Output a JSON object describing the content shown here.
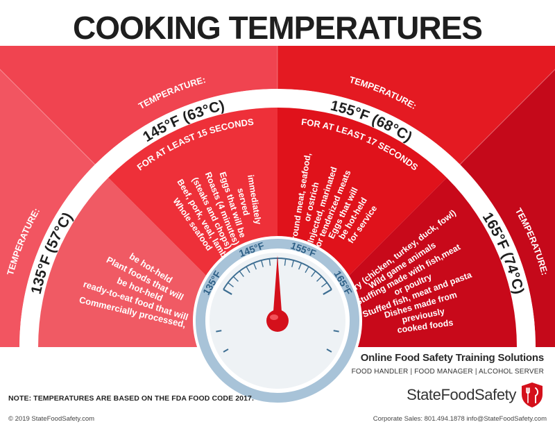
{
  "title": "COOKING TEMPERATURES",
  "colors": {
    "band1": "#f05a64",
    "band2": "#ee3039",
    "band3": "#e0121b",
    "band4": "#c8091a",
    "header1": "#f25561",
    "header2": "#f04450",
    "header3": "#e41a22",
    "header4": "#c5091a",
    "gauge_ring": "#a8c3d8",
    "gauge_face": "#eef2f5",
    "needle": "#d4101b"
  },
  "sections": [
    {
      "temp_label": "TEMPERATURE:",
      "temp": "135°F (57°C)",
      "duration": "",
      "items": [
        "Commercially processed,",
        "ready-to-eat food that will",
        "be hot-held",
        "Plant foods that will",
        "be hot-held"
      ]
    },
    {
      "temp_label": "TEMPERATURE:",
      "temp": "145°F (63°C)",
      "duration": "FOR AT LEAST 15 SECONDS",
      "items": [
        "Whole seafood",
        "Beef, pork, veal, lamb",
        "(steaks and chops)",
        "Roasts (4 minutes)",
        "Eggs that will be",
        "served",
        "immediately"
      ]
    },
    {
      "temp_label": "TEMPERATURE:",
      "temp": "155°F (68°C)",
      "duration": "FOR AT LEAST 17 SECONDS",
      "items": [
        "Ground meat, seafood,",
        "or ostrich",
        "Injected, marinated",
        "or tenderized meats",
        "Eggs that will",
        "be hot-held",
        "for service"
      ]
    },
    {
      "temp_label": "TEMPERATURE:",
      "temp": "165°F (74°C)",
      "duration": "",
      "items": [
        "Poultry (chicken, turkey, duck, fowl)",
        "Wild game animals",
        "Stuffing made with fish,meat",
        "or poultry",
        "Stuffed fish, meat and pasta",
        "Dishes made from",
        "previously",
        "cooked foods"
      ]
    }
  ],
  "gauge": {
    "ticks": [
      "135°F",
      "145°F",
      "155°F",
      "165°F"
    ],
    "needle_value": 150
  },
  "note": "NOTE: TEMPERATURES ARE BASED ON THE FDA FOOD CODE 2017.",
  "company": {
    "tagline": "Online Food Safety Training Solutions",
    "roles": "FOOD HANDLER | FOOD MANAGER | ALCOHOL SERVER",
    "name": "StateFoodSafety",
    "copyright": "© 2019 StateFoodSafety.com",
    "sales": "Corporate Sales: 801.494.1878  info@StateFoodSafety.com"
  }
}
